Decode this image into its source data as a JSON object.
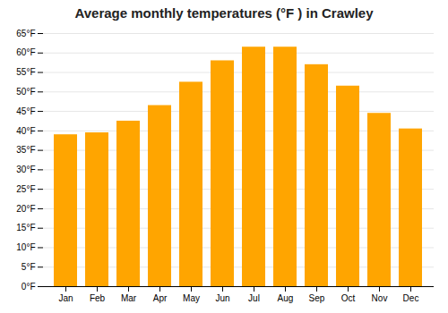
{
  "chart_data": {
    "type": "bar",
    "title": "Average monthly temperatures (°F ) in Crawley",
    "categories": [
      "Jan",
      "Feb",
      "Mar",
      "Apr",
      "May",
      "Jun",
      "Jul",
      "Aug",
      "Sep",
      "Oct",
      "Nov",
      "Dec"
    ],
    "values": [
      39,
      39.5,
      42.5,
      46.5,
      52.5,
      58,
      61.5,
      61.5,
      57,
      51.5,
      44.5,
      40.5
    ],
    "color": "#FFA500",
    "ylim": [
      0,
      65
    ],
    "yticks": [
      {
        "value": 0,
        "label": "0°F"
      },
      {
        "value": 5,
        "label": "5°F"
      },
      {
        "value": 10,
        "label": "10°F"
      },
      {
        "value": 15,
        "label": "15°F"
      },
      {
        "value": 20,
        "label": "20°F"
      },
      {
        "value": 25,
        "label": "25°F"
      },
      {
        "value": 30,
        "label": "30°F"
      },
      {
        "value": 35,
        "label": "35°F"
      },
      {
        "value": 40,
        "label": "40°F"
      },
      {
        "value": 45,
        "label": "45°F"
      },
      {
        "value": 50,
        "label": "50°F"
      },
      {
        "value": 55,
        "label": "55°F"
      },
      {
        "value": 60,
        "label": "60°F"
      },
      {
        "value": 65,
        "label": "65°F"
      }
    ],
    "grid": true
  }
}
